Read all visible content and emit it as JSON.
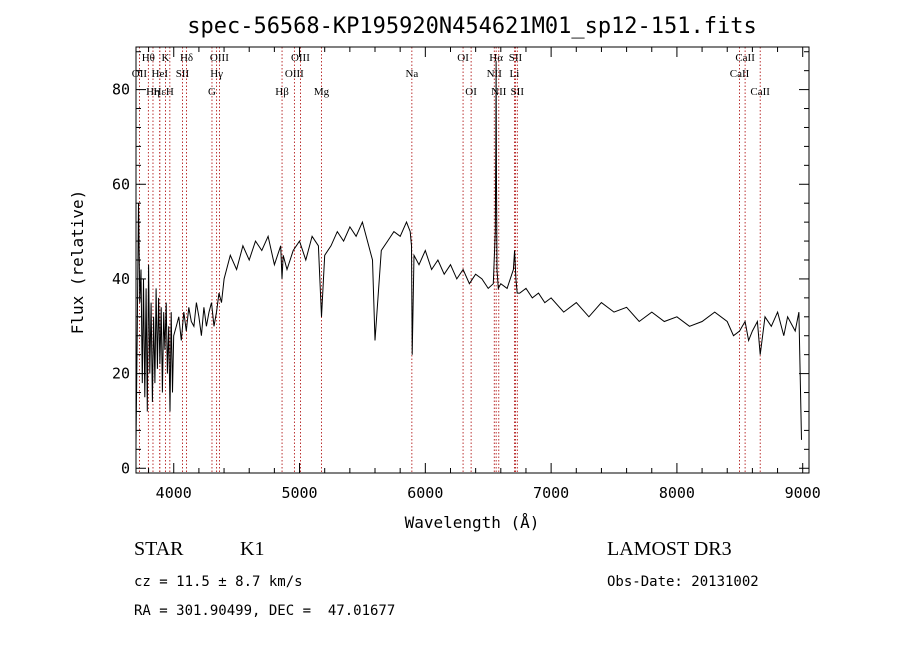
{
  "chart_data": {
    "type": "line",
    "title": "spec-56568-KP195920N454621M01_sp12-151.fits",
    "xlabel": "Wavelength (Å)",
    "ylabel": "Flux (relative)",
    "xlim": [
      3700,
      9050
    ],
    "ylim": [
      -1,
      89
    ],
    "xticks": [
      4000,
      5000,
      6000,
      7000,
      8000,
      9000
    ],
    "yticks": [
      0,
      20,
      40,
      60,
      80
    ],
    "grid": false,
    "series": [
      {
        "name": "flux",
        "x": [
          3700,
          3710,
          3720,
          3730,
          3740,
          3750,
          3760,
          3770,
          3780,
          3790,
          3800,
          3810,
          3820,
          3830,
          3840,
          3850,
          3860,
          3870,
          3880,
          3890,
          3900,
          3910,
          3920,
          3930,
          3940,
          3950,
          3960,
          3970,
          3980,
          3990,
          4000,
          4020,
          4040,
          4060,
          4080,
          4100,
          4120,
          4140,
          4160,
          4180,
          4200,
          4220,
          4240,
          4260,
          4280,
          4300,
          4320,
          4340,
          4360,
          4380,
          4400,
          4450,
          4500,
          4550,
          4600,
          4650,
          4700,
          4750,
          4800,
          4850,
          4861,
          4870,
          4900,
          4950,
          5000,
          5050,
          5100,
          5150,
          5175,
          5200,
          5250,
          5300,
          5350,
          5400,
          5450,
          5500,
          5550,
          5580,
          5600,
          5650,
          5700,
          5750,
          5800,
          5850,
          5880,
          5890,
          5896,
          5910,
          5950,
          6000,
          6050,
          6100,
          6150,
          6200,
          6250,
          6300,
          6350,
          6400,
          6450,
          6500,
          6540,
          6556,
          6560,
          6563,
          6566,
          6570,
          6580,
          6600,
          6650,
          6700,
          6710,
          6720,
          6730,
          6750,
          6800,
          6850,
          6900,
          6950,
          7000,
          7100,
          7200,
          7300,
          7400,
          7500,
          7600,
          7700,
          7800,
          7900,
          8000,
          8100,
          8200,
          8300,
          8400,
          8450,
          8498,
          8520,
          8542,
          8570,
          8600,
          8640,
          8662,
          8700,
          8750,
          8800,
          8850,
          8880,
          8900,
          8940,
          8970,
          8990
        ],
        "values": [
          5,
          30,
          56,
          35,
          42,
          18,
          40,
          15,
          38,
          12,
          43,
          20,
          35,
          14,
          32,
          18,
          38,
          21,
          36,
          22,
          34,
          16,
          33,
          25,
          35,
          20,
          30,
          12,
          33,
          16,
          28,
          30,
          32,
          27,
          33,
          29,
          34,
          31,
          30,
          35,
          32,
          28,
          34,
          30,
          33,
          35,
          30,
          33,
          37,
          35,
          40,
          45,
          42,
          47,
          44,
          48,
          46,
          49,
          43,
          47,
          40,
          45,
          42,
          46,
          48,
          44,
          49,
          47,
          32,
          45,
          47,
          50,
          48,
          51,
          49,
          52,
          47,
          44,
          27,
          46,
          48,
          50,
          49,
          52,
          50,
          47,
          24,
          45,
          43,
          46,
          42,
          44,
          41,
          43,
          40,
          42,
          39,
          41,
          40,
          38,
          39,
          50,
          68,
          86,
          60,
          42,
          38,
          39,
          38,
          42,
          46,
          40,
          37,
          37,
          38,
          36,
          37,
          35,
          36,
          33,
          35,
          32,
          35,
          33,
          34,
          31,
          33,
          31,
          32,
          30,
          31,
          33,
          31,
          28,
          29,
          30,
          31,
          27,
          29,
          31,
          24,
          32,
          30,
          33,
          28,
          32,
          31,
          29,
          33,
          6
        ]
      }
    ],
    "spectral_lines": [
      {
        "label": "Hθ",
        "wl": 3798,
        "row": 1
      },
      {
        "label": "OII",
        "wl": 3727,
        "row": 2
      },
      {
        "label": "Hη",
        "wl": 3835,
        "row": 3
      },
      {
        "label": "HeI",
        "wl": 3889,
        "row": 2
      },
      {
        "label": "Hε",
        "wl": 3889,
        "row": 3
      },
      {
        "label": "K",
        "wl": 3934,
        "row": 1
      },
      {
        "label": "H",
        "wl": 3969,
        "row": 3
      },
      {
        "label": "SII",
        "wl": 4069,
        "row": 2
      },
      {
        "label": "Hδ",
        "wl": 4102,
        "row": 1
      },
      {
        "label": "OIII",
        "wl": 4363,
        "row": 1
      },
      {
        "label": "Hγ",
        "wl": 4341,
        "row": 2
      },
      {
        "label": "G",
        "wl": 4304,
        "row": 3
      },
      {
        "label": "Hβ",
        "wl": 4861,
        "row": 3
      },
      {
        "label": "OIII",
        "wl": 5007,
        "row": 1
      },
      {
        "label": "OIII",
        "wl": 4959,
        "row": 2
      },
      {
        "label": "Mg",
        "wl": 5175,
        "row": 3
      },
      {
        "label": "Na",
        "wl": 5893,
        "row": 2
      },
      {
        "label": "OI",
        "wl": 6300,
        "row": 1
      },
      {
        "label": "OI",
        "wl": 6364,
        "row": 3
      },
      {
        "label": "Hα",
        "wl": 6563,
        "row": 1
      },
      {
        "label": "NII",
        "wl": 6548,
        "row": 2
      },
      {
        "label": "NII",
        "wl": 6584,
        "row": 3
      },
      {
        "label": "SII",
        "wl": 6717,
        "row": 1
      },
      {
        "label": "Li",
        "wl": 6708,
        "row": 2
      },
      {
        "label": "SII",
        "wl": 6731,
        "row": 3
      },
      {
        "label": "CaII",
        "wl": 8542,
        "row": 1
      },
      {
        "label": "CaII",
        "wl": 8498,
        "row": 2
      },
      {
        "label": "CaII",
        "wl": 8662,
        "row": 3
      }
    ],
    "colors": {
      "spectrum": "#000000",
      "line_marker": "#aa0000",
      "axes": "#000000"
    }
  },
  "info": {
    "class": "STAR",
    "subclass": "K1",
    "survey": "LAMOST DR3",
    "cz": "cz = 11.5 ± 8.7 km/s",
    "obs_date": "Obs-Date: 20131002",
    "coords": "RA = 301.90499, DEC =  47.01677"
  }
}
